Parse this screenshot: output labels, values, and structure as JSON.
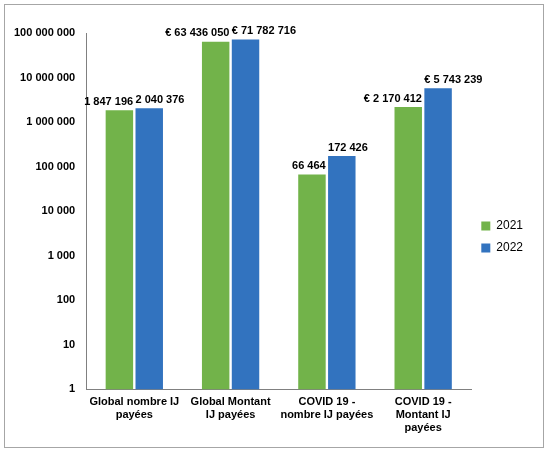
{
  "chart_data": {
    "type": "bar",
    "categories": [
      "Global nombre IJ payées",
      "Global Montant IJ payées",
      "COVID 19 - nombre IJ payées",
      "COVID 19 - Montant IJ payées"
    ],
    "series": [
      {
        "name": "2021",
        "color": "#72b34a",
        "values": [
          1847196,
          63436050,
          66464,
          2170412
        ],
        "value_labels": [
          "1 847 196",
          "€ 63 436 050",
          "66 464",
          "€ 2 170 412"
        ]
      },
      {
        "name": "2022",
        "color": "#3273bf",
        "values": [
          2040376,
          71782716,
          172426,
          5743239
        ],
        "value_labels": [
          "2 040 376",
          "€ 71 782 716",
          "172 426",
          "€ 5 743 239"
        ]
      }
    ],
    "log": "y",
    "ylim": [
      1,
      100000000
    ],
    "yticks": [
      1,
      10,
      100,
      {
        "value": 1000,
        "label": "1 000"
      },
      {
        "value": 10000,
        "label": "10 000"
      },
      {
        "value": 100000,
        "label": "100 000"
      },
      {
        "value": 1000000,
        "label": "1 000 000"
      },
      {
        "value": 10000000,
        "label": "10 000 000"
      },
      {
        "value": 100000000,
        "label": "100 000 000"
      }
    ],
    "grid": false,
    "legend": "right",
    "data_labels": true
  }
}
